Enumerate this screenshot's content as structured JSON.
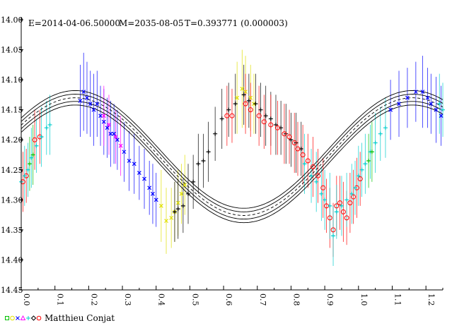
{
  "chart_data": {
    "type": "scatter",
    "header": {
      "epoch": "E=2014-04-06.50000",
      "model": "M=2035-08-05",
      "period": "T=0.393771 (0.000003)"
    },
    "credit": "Matthieu Conjat",
    "legend_symbol_colors": [
      "#00c000",
      "#e0e000",
      "#0000ff",
      "#ff00ff",
      "#00cccc",
      "#000000",
      "#ff0000"
    ],
    "x_ticks": [
      "0.0",
      "0.1",
      "0.2",
      "0.3",
      "0.4",
      "0.5",
      "0.6",
      "0.7",
      "0.8",
      "0.9",
      "1.0",
      "1.1",
      "1.2"
    ],
    "y_ticks": [
      "14.00",
      "14.05",
      "14.10",
      "14.15",
      "14.20",
      "14.25",
      "14.30",
      "14.35",
      "14.40",
      "14.45"
    ],
    "xlim": [
      0.0,
      1.25
    ],
    "ylim": [
      14.0,
      14.45
    ],
    "y_inverted": true,
    "model_curve": {
      "mean": 14.228,
      "amplitude": 0.098,
      "phase_of_max": 0.16,
      "band_offsets": [
        -0.012,
        -0.006,
        0.006,
        0.012
      ]
    },
    "series": [
      {
        "color": "#0000ff",
        "marker": "x",
        "points": [
          [
            0.175,
            14.135,
            0.06
          ],
          [
            0.185,
            14.12,
            0.065
          ],
          [
            0.195,
            14.13,
            0.06
          ],
          [
            0.205,
            14.14,
            0.055
          ],
          [
            0.215,
            14.15,
            0.06
          ],
          [
            0.225,
            14.14,
            0.055
          ],
          [
            0.235,
            14.16,
            0.05
          ],
          [
            0.245,
            14.17,
            0.055
          ],
          [
            0.255,
            14.18,
            0.05
          ],
          [
            0.265,
            14.19,
            0.055
          ],
          [
            0.275,
            14.19,
            0.05
          ],
          [
            0.285,
            14.2,
            0.05
          ],
          [
            0.305,
            14.22,
            0.05
          ],
          [
            0.32,
            14.235,
            0.05
          ],
          [
            0.335,
            14.24,
            0.05
          ],
          [
            0.35,
            14.255,
            0.045
          ],
          [
            0.365,
            14.265,
            0.05
          ],
          [
            0.38,
            14.28,
            0.045
          ],
          [
            0.39,
            14.29,
            0.05
          ],
          [
            0.4,
            14.3,
            0.045
          ],
          [
            1.095,
            14.15,
            0.05
          ],
          [
            1.12,
            14.14,
            0.055
          ],
          [
            1.145,
            14.13,
            0.05
          ],
          [
            1.17,
            14.12,
            0.05
          ],
          [
            1.19,
            14.12,
            0.06
          ],
          [
            1.205,
            14.13,
            0.05
          ],
          [
            1.215,
            14.14,
            0.05
          ],
          [
            1.23,
            14.15,
            0.055
          ],
          [
            1.245,
            14.16,
            0.05
          ]
        ]
      },
      {
        "color": "#ff00ff",
        "marker": "x",
        "points": [
          [
            0.245,
            14.16,
            0.05
          ],
          [
            0.26,
            14.175,
            0.05
          ],
          [
            0.28,
            14.195,
            0.045
          ],
          [
            0.295,
            14.21,
            0.05
          ]
        ]
      },
      {
        "color": "#e0e000",
        "marker": "x",
        "points": [
          [
            0.415,
            14.31,
            0.06
          ],
          [
            0.43,
            14.335,
            0.055
          ],
          [
            0.445,
            14.33,
            0.05
          ],
          [
            0.455,
            14.32,
            0.05
          ],
          [
            0.465,
            14.305,
            0.055
          ],
          [
            0.475,
            14.29,
            0.05
          ],
          [
            0.485,
            14.275,
            0.05
          ],
          [
            0.64,
            14.13,
            0.06
          ],
          [
            0.655,
            14.115,
            0.065
          ],
          [
            0.665,
            14.12,
            0.06
          ],
          [
            0.68,
            14.13,
            0.055
          ],
          [
            0.69,
            14.14,
            0.05
          ]
        ]
      },
      {
        "color": "#000000",
        "marker": "+",
        "points": [
          [
            0.455,
            14.32,
            0.05
          ],
          [
            0.465,
            14.315,
            0.05
          ],
          [
            0.48,
            14.31,
            0.045
          ],
          [
            0.495,
            14.29,
            0.05
          ],
          [
            0.51,
            14.27,
            0.045
          ],
          [
            0.525,
            14.24,
            0.05
          ],
          [
            0.54,
            14.235,
            0.045
          ],
          [
            0.555,
            14.22,
            0.05
          ],
          [
            0.575,
            14.19,
            0.045
          ],
          [
            0.595,
            14.165,
            0.05
          ],
          [
            0.615,
            14.15,
            0.045
          ],
          [
            0.635,
            14.14,
            0.05
          ],
          [
            0.66,
            14.125,
            0.05
          ],
          [
            0.675,
            14.135,
            0.045
          ],
          [
            0.695,
            14.14,
            0.05
          ],
          [
            0.71,
            14.15,
            0.045
          ],
          [
            0.725,
            14.16,
            0.05
          ],
          [
            0.74,
            14.165,
            0.045
          ],
          [
            0.755,
            14.175,
            0.05
          ],
          [
            0.77,
            14.18,
            0.045
          ],
          [
            0.785,
            14.19,
            0.05
          ],
          [
            0.8,
            14.2,
            0.045
          ],
          [
            0.815,
            14.205,
            0.05
          ],
          [
            0.83,
            14.215,
            0.045
          ]
        ]
      },
      {
        "color": "#ff0000",
        "marker": "o",
        "points": [
          [
            0.005,
            14.27,
            0.05
          ],
          [
            0.015,
            14.26,
            0.045
          ],
          [
            0.04,
            14.2,
            0.05
          ],
          [
            0.055,
            14.195,
            0.045
          ],
          [
            0.61,
            14.16,
            0.05
          ],
          [
            0.625,
            14.16,
            0.045
          ],
          [
            0.665,
            14.14,
            0.05
          ],
          [
            0.68,
            14.15,
            0.045
          ],
          [
            0.705,
            14.16,
            0.05
          ],
          [
            0.72,
            14.17,
            0.045
          ],
          [
            0.74,
            14.175,
            0.05
          ],
          [
            0.76,
            14.18,
            0.045
          ],
          [
            0.78,
            14.19,
            0.05
          ],
          [
            0.795,
            14.195,
            0.045
          ],
          [
            0.81,
            14.205,
            0.05
          ],
          [
            0.82,
            14.215,
            0.045
          ],
          [
            0.835,
            14.225,
            0.05
          ],
          [
            0.85,
            14.235,
            0.045
          ],
          [
            0.865,
            14.245,
            0.05
          ],
          [
            0.88,
            14.26,
            0.045
          ],
          [
            0.895,
            14.28,
            0.05
          ],
          [
            0.905,
            14.31,
            0.045
          ],
          [
            0.915,
            14.33,
            0.05
          ],
          [
            0.925,
            14.35,
            0.045
          ],
          [
            0.935,
            14.31,
            0.05
          ],
          [
            0.945,
            14.305,
            0.045
          ],
          [
            0.955,
            14.32,
            0.05
          ],
          [
            0.965,
            14.33,
            0.045
          ],
          [
            0.975,
            14.305,
            0.05
          ],
          [
            0.985,
            14.295,
            0.045
          ],
          [
            0.995,
            14.28,
            0.05
          ],
          [
            1.005,
            14.265,
            0.045
          ]
        ]
      },
      {
        "color": "#00cccc",
        "marker": "+",
        "points": [
          [
            0.0,
            14.27,
            0.05
          ],
          [
            0.01,
            14.26,
            0.05
          ],
          [
            0.02,
            14.25,
            0.045
          ],
          [
            0.03,
            14.23,
            0.05
          ],
          [
            0.045,
            14.21,
            0.045
          ],
          [
            0.06,
            14.195,
            0.05
          ],
          [
            0.075,
            14.18,
            0.045
          ],
          [
            0.085,
            14.175,
            0.05
          ],
          [
            0.84,
            14.24,
            0.05
          ],
          [
            0.86,
            14.26,
            0.045
          ],
          [
            0.875,
            14.27,
            0.05
          ],
          [
            0.89,
            14.29,
            0.045
          ],
          [
            0.9,
            14.3,
            0.05
          ],
          [
            0.915,
            14.31,
            0.055
          ],
          [
            0.925,
            14.36,
            0.05
          ],
          [
            0.935,
            14.32,
            0.045
          ],
          [
            0.95,
            14.31,
            0.05
          ],
          [
            0.965,
            14.3,
            0.045
          ],
          [
            0.98,
            14.29,
            0.05
          ],
          [
            0.99,
            14.28,
            0.045
          ],
          [
            1.0,
            14.26,
            0.05
          ],
          [
            1.01,
            14.25,
            0.045
          ],
          [
            1.02,
            14.24,
            0.05
          ],
          [
            1.035,
            14.22,
            0.045
          ],
          [
            1.05,
            14.205,
            0.05
          ],
          [
            1.065,
            14.19,
            0.045
          ],
          [
            1.08,
            14.18,
            0.05
          ],
          [
            1.24,
            14.14,
            0.05
          ],
          [
            1.25,
            14.15,
            0.045
          ]
        ]
      },
      {
        "color": "#00c000",
        "marker": "+",
        "points": [
          [
            0.025,
            14.24,
            0.045
          ],
          [
            0.035,
            14.225,
            0.05
          ],
          [
            1.03,
            14.235,
            0.045
          ],
          [
            1.04,
            14.22,
            0.05
          ]
        ]
      }
    ]
  }
}
